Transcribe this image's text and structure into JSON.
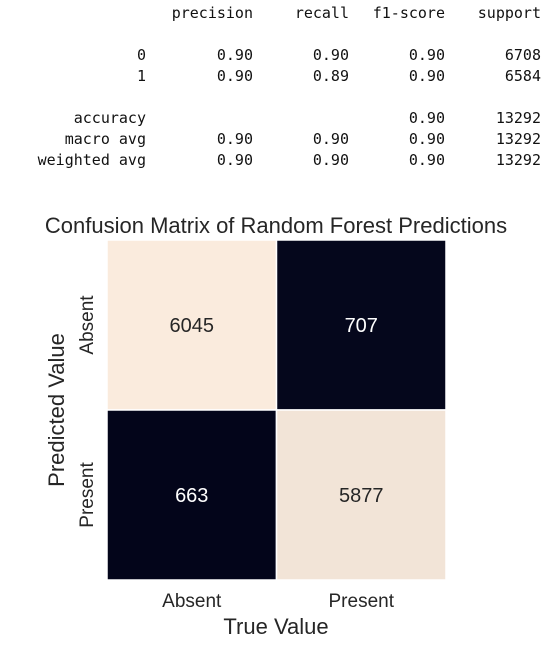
{
  "report": {
    "columns": [
      "precision",
      "recall",
      "f1-score",
      "support"
    ],
    "rows": [
      {
        "label": "0",
        "precision": "0.90",
        "recall": "0.90",
        "f1": "0.90",
        "support": "6708"
      },
      {
        "label": "1",
        "precision": "0.90",
        "recall": "0.89",
        "f1": "0.90",
        "support": "6584"
      },
      {
        "label": "accuracy",
        "precision": "",
        "recall": "",
        "f1": "0.90",
        "support": "13292"
      },
      {
        "label": "macro avg",
        "precision": "0.90",
        "recall": "0.90",
        "f1": "0.90",
        "support": "13292"
      },
      {
        "label": "weighted avg",
        "precision": "0.90",
        "recall": "0.90",
        "f1": "0.90",
        "support": "13292"
      }
    ]
  },
  "chart_data": {
    "type": "heatmap",
    "title": "Confusion Matrix of Random Forest Predictions",
    "xlabel": "True Value",
    "ylabel": "Predicted Value",
    "x_categories": [
      "Absent",
      "Present"
    ],
    "y_categories": [
      "Absent",
      "Present"
    ],
    "values": [
      [
        6045,
        707
      ],
      [
        663,
        5877
      ]
    ],
    "colorbar": false,
    "colors": {
      "high": "#faebdd",
      "low": "#03051a"
    }
  }
}
